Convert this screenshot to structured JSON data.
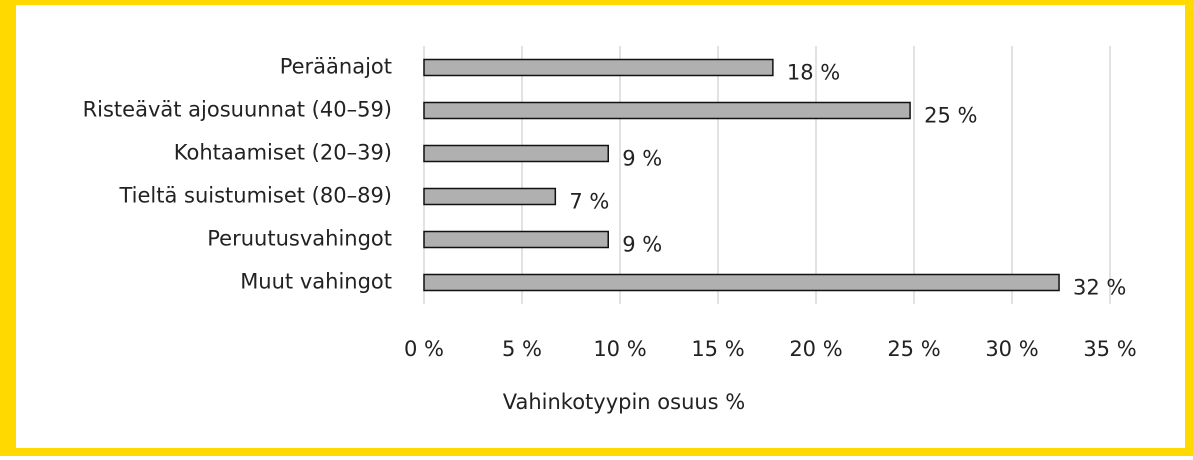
{
  "chart_data": {
    "type": "hbar",
    "categories": [
      "Peräänajot",
      "Risteävät ajosuunnat (40–59)",
      "Kohtaamiset (20–39)",
      "Tieltä suistumiset (80–89)",
      "Peruutusvahingot",
      "Muut vahingot"
    ],
    "values": [
      17.8,
      24.8,
      9.4,
      6.7,
      9.4,
      32.4
    ],
    "value_labels": [
      "18 %",
      "25 %",
      "9 %",
      "7 %",
      "9 %",
      "32 %"
    ],
    "color": "#b0b0b0",
    "xlabel": "Vahinkotyypin osuus %",
    "xlim": [
      0,
      35
    ],
    "xticks": [
      {
        "value": 0,
        "label": "0 %"
      },
      {
        "value": 5,
        "label": "5 %"
      },
      {
        "value": 10,
        "label": "10 %"
      },
      {
        "value": 15,
        "label": "15 %"
      },
      {
        "value": 20,
        "label": "20 %"
      },
      {
        "value": 25,
        "label": "25 %"
      },
      {
        "value": 30,
        "label": "30 %"
      },
      {
        "value": 35,
        "label": "35 %"
      }
    ],
    "grid": true
  }
}
